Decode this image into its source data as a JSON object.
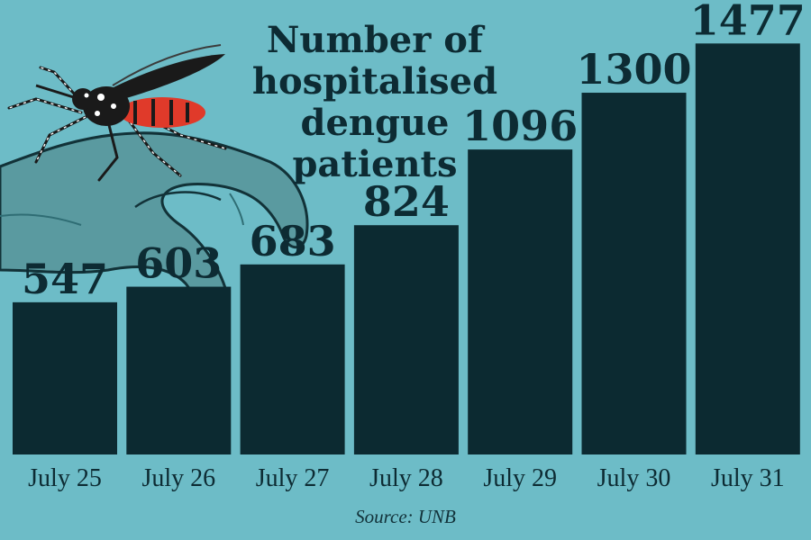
{
  "colors": {
    "background": "#6dbcc7",
    "bar": "#0c2a31",
    "text": "#0d2b33",
    "mosquito_body": "#1a1a1a",
    "mosquito_red": "#e03a2a",
    "hand": "#5a9aa0"
  },
  "illustration": {
    "icon": "mosquito-on-hand-icon"
  },
  "chart_data": {
    "type": "bar",
    "title": "Number of hospitalised dengue patients",
    "title_lines": [
      "Number of",
      "hospitalised",
      "dengue patients"
    ],
    "categories": [
      "July 25",
      "July 26",
      "July 27",
      "July 28",
      "July 29",
      "July 30",
      "July 31"
    ],
    "values": [
      547,
      603,
      683,
      824,
      1096,
      1300,
      1477
    ],
    "data_labels": [
      "547",
      "603",
      "683",
      "824",
      "1096",
      "1300",
      "1477"
    ],
    "xlabel": "",
    "ylabel": "",
    "ylim": [
      0,
      1630
    ],
    "grid": false,
    "legend": "none",
    "source": "Source: UNB"
  }
}
